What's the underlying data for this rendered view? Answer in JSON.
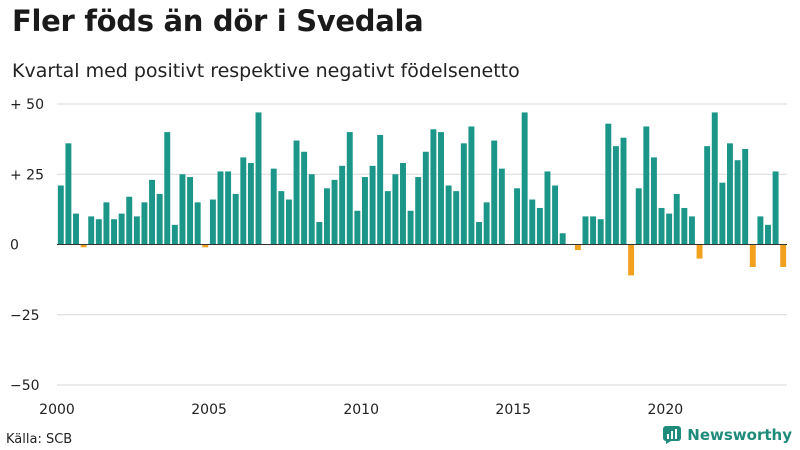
{
  "title": "Fler föds än dör i Svedala",
  "subtitle": "Kvartal med positivt respektive negativt födelsenetto",
  "source": "Källa: SCB",
  "brand": "Newsworthy",
  "colors": {
    "positive": "#1b9688",
    "negative": "#f2a11f",
    "grid": "#d9d9d9",
    "axis": "#333333",
    "brand": "#1f8b7a"
  },
  "chart_data": {
    "type": "bar",
    "title": "Fler föds än dör i Svedala",
    "subtitle": "Kvartal med positivt respektive negativt födelsenetto",
    "xlabel": "",
    "ylabel": "",
    "ylim": [
      -50,
      50
    ],
    "yticks": [
      50,
      25,
      0,
      -25,
      -50
    ],
    "ytick_labels": [
      "+ 50",
      "+ 25",
      "0",
      "−25",
      "−50"
    ],
    "xticks": [
      2000,
      2005,
      2010,
      2015,
      2020
    ],
    "xlim": [
      2000,
      2024
    ],
    "grid": true,
    "legend": "none",
    "categories": [
      "2000Q1",
      "2000Q2",
      "2000Q3",
      "2000Q4",
      "2001Q1",
      "2001Q2",
      "2001Q3",
      "2001Q4",
      "2002Q1",
      "2002Q2",
      "2002Q3",
      "2002Q4",
      "2003Q1",
      "2003Q2",
      "2003Q3",
      "2003Q4",
      "2004Q1",
      "2004Q2",
      "2004Q3",
      "2004Q4",
      "2005Q1",
      "2005Q2",
      "2005Q3",
      "2005Q4",
      "2006Q1",
      "2006Q2",
      "2006Q3",
      "2006Q4",
      "2007Q1",
      "2007Q2",
      "2007Q3",
      "2007Q4",
      "2008Q1",
      "2008Q2",
      "2008Q3",
      "2008Q4",
      "2009Q1",
      "2009Q2",
      "2009Q3",
      "2009Q4",
      "2010Q1",
      "2010Q2",
      "2010Q3",
      "2010Q4",
      "2011Q1",
      "2011Q2",
      "2011Q3",
      "2011Q4",
      "2012Q1",
      "2012Q2",
      "2012Q3",
      "2012Q4",
      "2013Q1",
      "2013Q2",
      "2013Q3",
      "2013Q4",
      "2014Q1",
      "2014Q2",
      "2014Q3",
      "2014Q4",
      "2015Q1",
      "2015Q2",
      "2015Q3",
      "2015Q4",
      "2016Q1",
      "2016Q2",
      "2016Q3",
      "2016Q4",
      "2017Q1",
      "2017Q2",
      "2017Q3",
      "2017Q4",
      "2018Q1",
      "2018Q2",
      "2018Q3",
      "2018Q4",
      "2019Q1",
      "2019Q2",
      "2019Q3",
      "2019Q4",
      "2020Q1",
      "2020Q2",
      "2020Q3",
      "2020Q4",
      "2021Q1",
      "2021Q2",
      "2021Q3",
      "2021Q4",
      "2022Q1",
      "2022Q2",
      "2022Q3",
      "2022Q4",
      "2023Q1",
      "2023Q2",
      "2023Q3",
      "2023Q4"
    ],
    "values": [
      21,
      36,
      11,
      -1,
      10,
      9,
      15,
      9,
      11,
      17,
      10,
      15,
      23,
      18,
      40,
      7,
      25,
      24,
      15,
      -1,
      16,
      26,
      26,
      18,
      31,
      29,
      47,
      0,
      27,
      19,
      16,
      37,
      33,
      25,
      8,
      20,
      23,
      28,
      40,
      12,
      24,
      28,
      39,
      19,
      25,
      29,
      12,
      24,
      33,
      41,
      40,
      21,
      19,
      36,
      42,
      8,
      15,
      37,
      27,
      0,
      20,
      47,
      16,
      13,
      26,
      21,
      4,
      0,
      -2,
      10,
      10,
      9,
      43,
      35,
      38,
      -11,
      20,
      42,
      31,
      13,
      11,
      18,
      13,
      10,
      -5,
      35,
      47,
      22,
      36,
      30,
      34,
      -8,
      10,
      7,
      26,
      -8
    ]
  }
}
